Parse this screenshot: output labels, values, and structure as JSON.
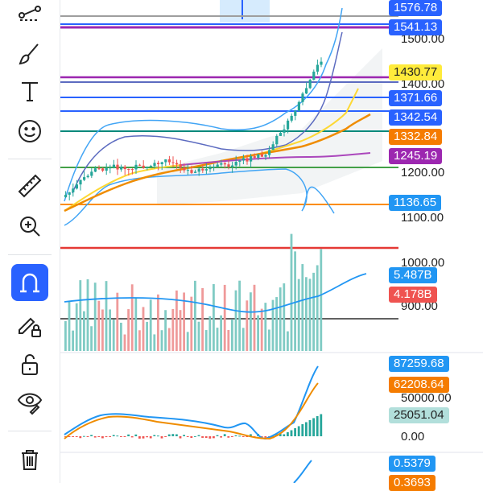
{
  "toolbar": {
    "tools": [
      {
        "name": "line-tools-icon"
      },
      {
        "name": "brush-icon"
      },
      {
        "name": "text-icon"
      },
      {
        "name": "emoji-icon"
      },
      {
        "name": "ruler-icon"
      },
      {
        "name": "zoom-in-icon"
      },
      {
        "name": "magnet-icon",
        "active": true
      },
      {
        "name": "lock-drawing-icon"
      },
      {
        "name": "unlock-icon"
      },
      {
        "name": "eye-icon"
      },
      {
        "name": "trash-icon"
      }
    ],
    "active_color": "#2962ff"
  },
  "price_pane": {
    "axis_labels": [
      "1500.00",
      "1400.00",
      "1200.00",
      "1100.00",
      "1000.00",
      "900.00"
    ],
    "tags": [
      {
        "text": "1576.78",
        "color": "#2962ff",
        "text_color": "#ffffff"
      },
      {
        "text": "1541.13",
        "color": "#2962ff",
        "text_color": "#ffffff"
      },
      {
        "text": "1430.77",
        "color": "#ffeb3b",
        "text_color": "#222222"
      },
      {
        "text": "1371.66",
        "color": "#2962ff",
        "text_color": "#ffffff"
      },
      {
        "text": "1342.54",
        "color": "#2962ff",
        "text_color": "#ffffff"
      },
      {
        "text": "1332.84",
        "color": "#f57c00",
        "text_color": "#ffffff"
      },
      {
        "text": "1245.19",
        "color": "#9c27b0",
        "text_color": "#ffffff"
      },
      {
        "text": "1136.65",
        "color": "#2196f3",
        "text_color": "#ffffff"
      }
    ]
  },
  "volume_pane": {
    "tags": [
      {
        "text": "5.487B",
        "color": "#2196f3"
      },
      {
        "text": "4.178B",
        "color": "#ef5350"
      }
    ]
  },
  "macd_pane": {
    "axis_labels": [
      "50000.00",
      "0.00"
    ],
    "tags": [
      {
        "text": "87259.68",
        "color": "#2196f3",
        "text_color": "#ffffff"
      },
      {
        "text": "62208.64",
        "color": "#f57c00",
        "text_color": "#ffffff"
      },
      {
        "text": "25051.04",
        "color": "#b2dfdb",
        "text_color": "#222222"
      }
    ]
  },
  "rsi_pane": {
    "tags": [
      {
        "text": "0.5379",
        "color": "#2196f3"
      },
      {
        "text": "0.3693",
        "color": "#f57c00"
      }
    ]
  }
}
